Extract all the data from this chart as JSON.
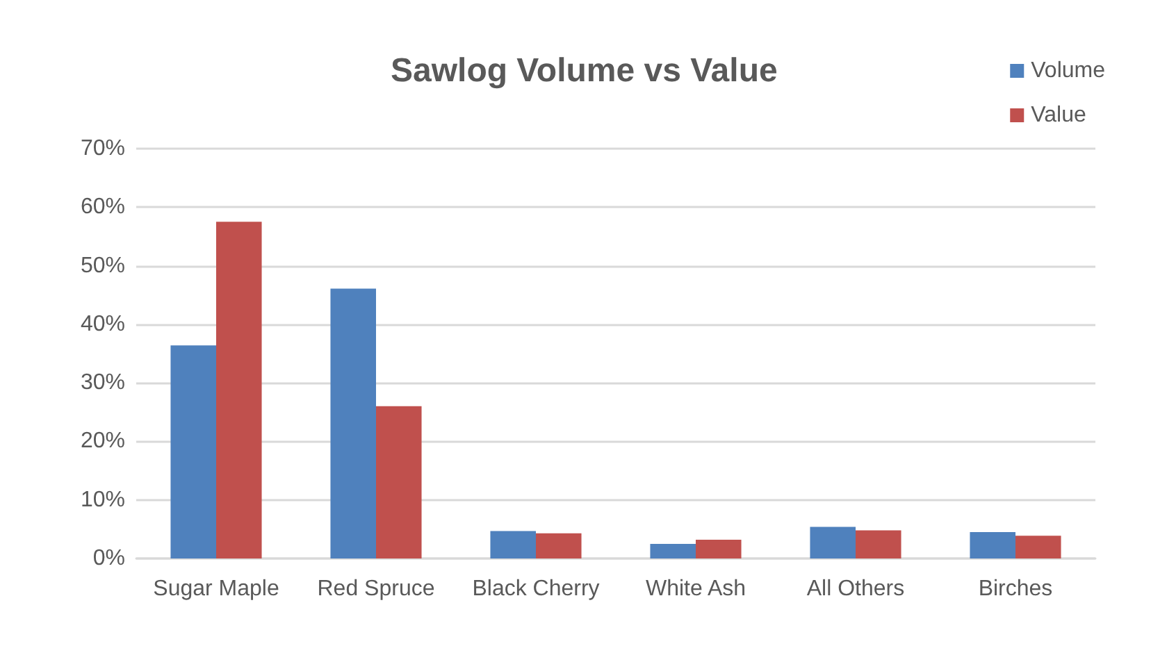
{
  "chart_data": {
    "type": "bar",
    "title": "Sawlog Volume vs Value",
    "categories": [
      "Sugar Maple",
      "Red Spruce",
      "Black Cherry",
      "White Ash",
      "All Others",
      "Birches"
    ],
    "series": [
      {
        "name": "Volume",
        "color": "#4f81bd",
        "values": [
          36.4,
          46.1,
          4.7,
          2.5,
          5.4,
          4.5
        ]
      },
      {
        "name": "Value",
        "color": "#c0504d",
        "values": [
          57.5,
          26.0,
          4.3,
          3.2,
          4.8,
          3.9
        ]
      }
    ],
    "ylim": [
      0,
      70
    ],
    "yticks": [
      {
        "value": 0,
        "label": "0%"
      },
      {
        "value": 10,
        "label": "10%"
      },
      {
        "value": 20,
        "label": "20%"
      },
      {
        "value": 30,
        "label": "30%"
      },
      {
        "value": 40,
        "label": "40%"
      },
      {
        "value": 50,
        "label": "50%"
      },
      {
        "value": 60,
        "label": "60%"
      },
      {
        "value": 70,
        "label": "70%"
      }
    ],
    "grid": "y",
    "legend": "top right"
  }
}
